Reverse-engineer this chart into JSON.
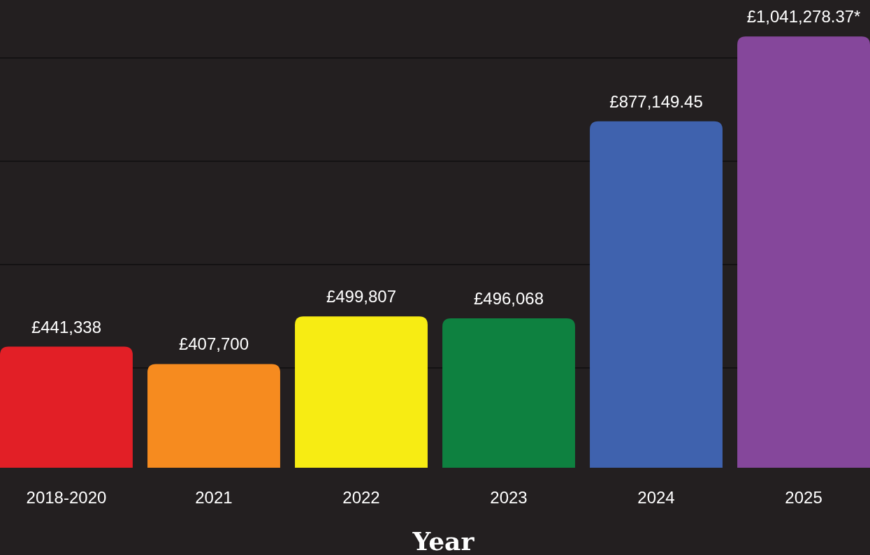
{
  "chart_data": {
    "type": "bar",
    "xlabel": "Year",
    "categories": [
      "2018-2020",
      "2021",
      "2022",
      "2023",
      "2024",
      "2025"
    ],
    "values": [
      441338,
      407700,
      499807,
      496068,
      877149.45,
      1041278.37
    ],
    "value_labels": [
      "£441,338",
      "£407,700",
      "£499,807",
      "£496,068",
      "£877,149.45",
      "£1,041,278.37*"
    ],
    "colors": [
      "#e21f26",
      "#f68b1f",
      "#f7ec13",
      "#0e8140",
      "#3f62ae",
      "#85479b"
    ],
    "ylim": [
      207000,
      1112000
    ],
    "yticks": [
      {
        "value": 400000,
        "label": null
      },
      {
        "value": 600000,
        "label": null
      },
      {
        "value": 800000,
        "label": null
      },
      {
        "value": 1000000,
        "label": null
      }
    ],
    "grid": "y"
  }
}
